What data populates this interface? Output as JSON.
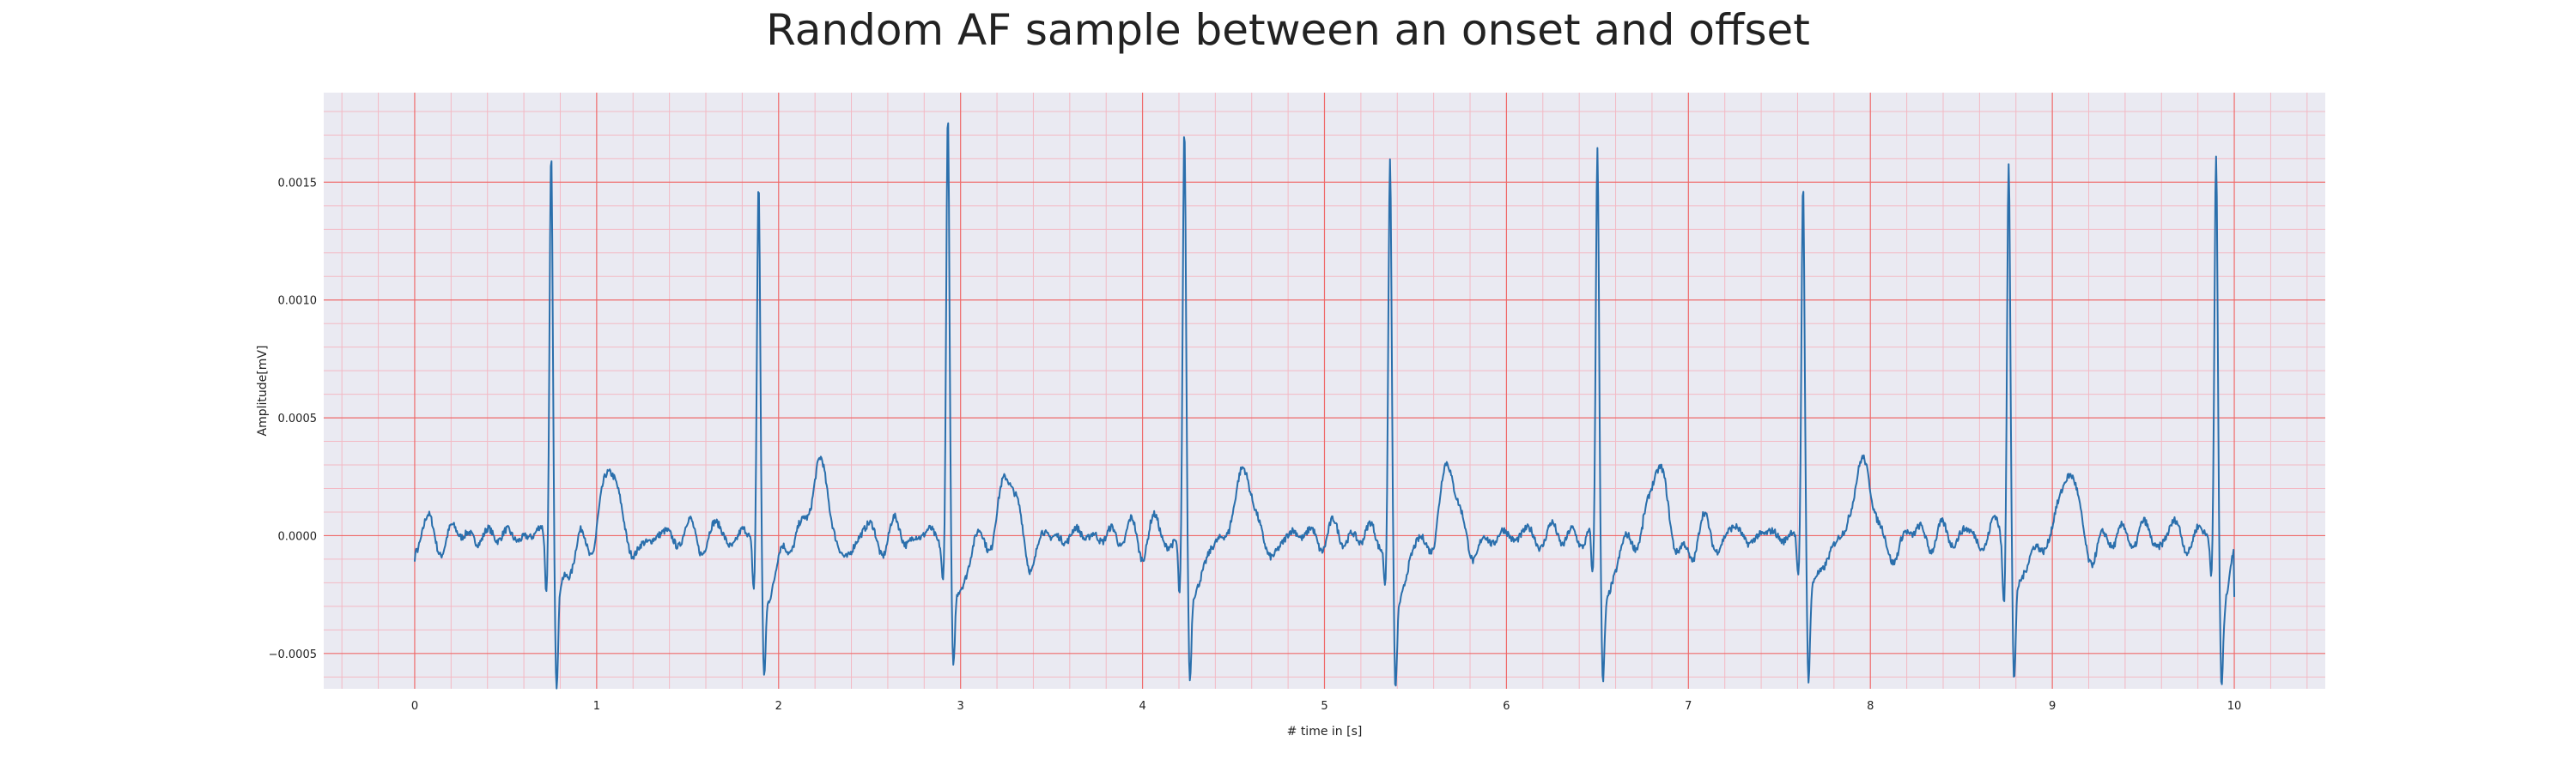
{
  "chart_data": {
    "type": "line",
    "title": "Random AF sample between an onset and offset",
    "xlabel": "# time in [s]",
    "ylabel": "Amplitude[mV]",
    "xlim": [
      -0.5,
      10.5
    ],
    "ylim": [
      -0.00065,
      0.00188
    ],
    "xticks": [
      0,
      1,
      2,
      3,
      4,
      5,
      6,
      7,
      8,
      9,
      10
    ],
    "xtick_labels": [
      "0",
      "1",
      "2",
      "3",
      "4",
      "5",
      "6",
      "7",
      "8",
      "9",
      "10"
    ],
    "yticks": [
      -0.0005,
      0.0,
      0.0005,
      0.001,
      0.0015
    ],
    "ytick_labels": [
      "−0.0005",
      "0.0000",
      "0.0005",
      "0.0010",
      "0.0015"
    ],
    "grid": true,
    "minor_grid": true,
    "colors": {
      "background": "#eaeaf2",
      "major_grid": "#ef6a6a",
      "minor_grid": "#f3b9c4",
      "line": "#2a6fac"
    },
    "series": [
      {
        "name": "",
        "sampling_rate_hz": 250,
        "start_s": 0,
        "end_s": 10,
        "beats": [
          {
            "r_time": 0.75,
            "r_peak": 0.00168,
            "q_depth": -0.00025,
            "s_depth": -0.00052,
            "t_peak": 0.00026
          },
          {
            "r_time": 1.89,
            "r_peak": 0.00148,
            "q_depth": -0.00023,
            "s_depth": -0.0005,
            "t_peak": 0.00028
          },
          {
            "r_time": 2.93,
            "r_peak": 0.00178,
            "q_depth": -0.00018,
            "s_depth": -0.00048,
            "t_peak": 0.00023
          },
          {
            "r_time": 4.23,
            "r_peak": 0.00169,
            "q_depth": -0.00027,
            "s_depth": -0.00053,
            "t_peak": 0.00027
          },
          {
            "r_time": 5.36,
            "r_peak": 0.00155,
            "q_depth": -0.0002,
            "s_depth": -0.00055,
            "t_peak": 0.00026
          },
          {
            "r_time": 6.5,
            "r_peak": 0.00161,
            "q_depth": -0.00023,
            "s_depth": -0.00049,
            "t_peak": 0.00027
          },
          {
            "r_time": 7.63,
            "r_peak": 0.00152,
            "q_depth": -0.00018,
            "s_depth": -0.00051,
            "t_peak": 0.00031
          },
          {
            "r_time": 8.76,
            "r_peak": 0.00165,
            "q_depth": -0.00024,
            "s_depth": -0.00051,
            "t_peak": 0.00026
          },
          {
            "r_time": 9.9,
            "r_peak": 0.00161,
            "q_depth": -0.00018,
            "s_depth": -0.00048,
            "t_peak": null
          }
        ],
        "start_value": -0.00011,
        "end_value": -0.00026
      }
    ]
  }
}
